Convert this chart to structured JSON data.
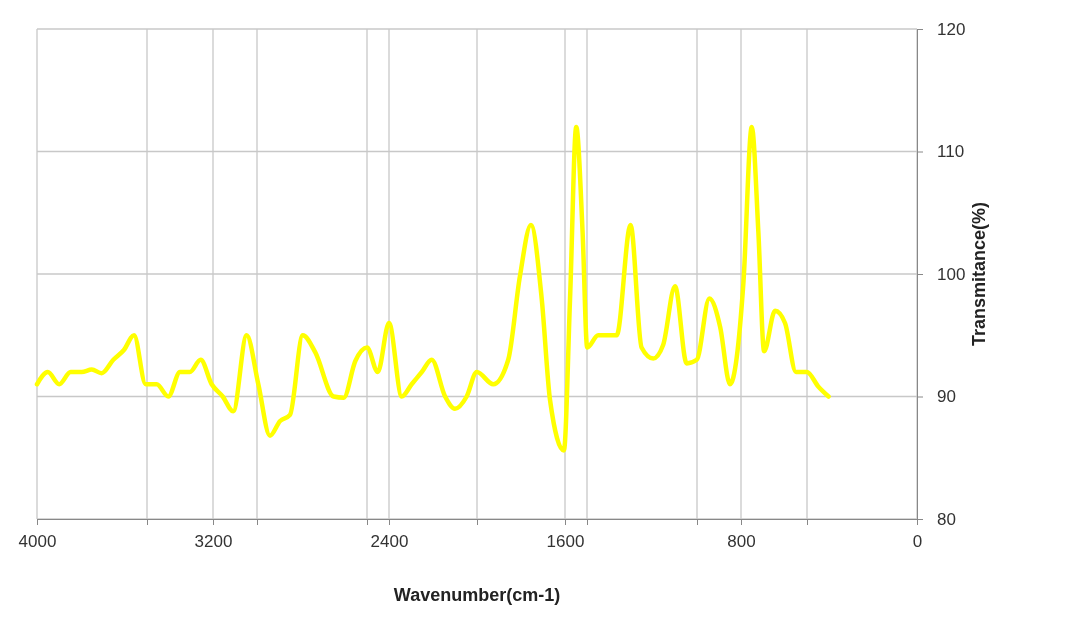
{
  "chart_data": {
    "type": "line",
    "xlabel": "Wavenumber(cm-1)",
    "ylabel": "Transmitance(%)",
    "xlim": [
      4000,
      0
    ],
    "xticks": [
      4000,
      {
        "value": 3500,
        "label": null
      },
      3200,
      {
        "value": 3000,
        "label": null
      },
      {
        "value": 2500,
        "label": null
      },
      2400,
      {
        "value": 2000,
        "label": null
      },
      1600,
      {
        "value": 1500,
        "label": null
      },
      {
        "value": 1000,
        "label": null
      },
      800,
      {
        "value": 500,
        "label": null
      },
      0
    ],
    "ylim": [
      80,
      120
    ],
    "yticks": [
      80,
      90,
      100,
      110,
      120
    ],
    "grid": true,
    "marker": "none",
    "line_style": "solid",
    "series": [
      {
        "color": "#ffff00",
        "x": [
          4000,
          3951,
          3899,
          3847,
          3797,
          3751,
          3706,
          3653,
          3605,
          3559,
          3506,
          3456,
          3403,
          3350,
          3305,
          3256,
          3206,
          3156,
          3108,
          3047,
          2994,
          2941,
          2895,
          2850,
          2792,
          2735,
          2652,
          2606,
          2553,
          2500,
          2451,
          2400,
          2342,
          2297,
          2251,
          2206,
          2145,
          2100,
          2047,
          2001,
          1926,
          1858,
          1805,
          1755,
          1706,
          1668,
          1605,
          1577,
          1549,
          1520,
          1499,
          1449,
          1365,
          1302,
          1252,
          1199,
          1154,
          1100,
          1047,
          1001,
          944,
          895,
          850,
          789,
          751,
          721,
          695,
          645,
          600,
          550,
          501,
          448,
          402
        ],
        "values": [
          91,
          92,
          91,
          92,
          92,
          92.2,
          91.9,
          93,
          93.8,
          95,
          91,
          91,
          90,
          92,
          92,
          93,
          91,
          90,
          88.8,
          95,
          91,
          86.8,
          88,
          88.5,
          95,
          93.6,
          90,
          89.9,
          92.9,
          94,
          92,
          96,
          90,
          91,
          92,
          93,
          90,
          89,
          90,
          92,
          91,
          93,
          99.8,
          104,
          98,
          89.7,
          85.6,
          98,
          112,
          103.4,
          94,
          95,
          95,
          104,
          94,
          93.1,
          94.2,
          99,
          92.7,
          93,
          98,
          95.7,
          91,
          99.3,
          112,
          103.4,
          93.7,
          97,
          96,
          92,
          92,
          90.8,
          90
        ]
      }
    ]
  }
}
